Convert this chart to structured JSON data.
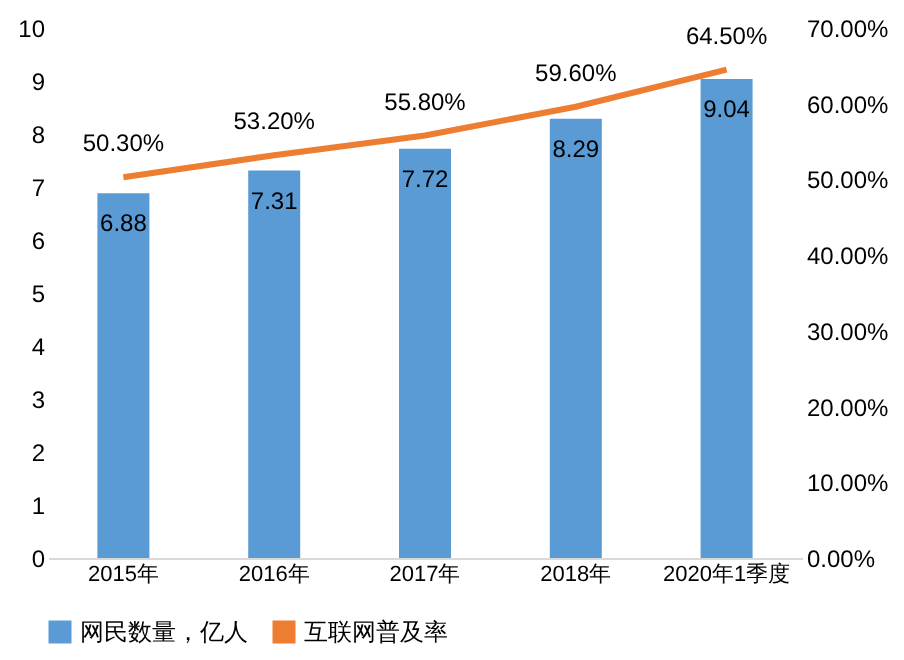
{
  "chart_data": {
    "type": "bar",
    "categories": [
      "2015年",
      "2016年",
      "2017年",
      "2018年",
      "2020年1季度"
    ],
    "series": [
      {
        "name": "网民数量，亿人",
        "type": "bar",
        "color": "#5b9bd5",
        "values": [
          6.88,
          7.31,
          7.72,
          8.29,
          9.04
        ],
        "value_labels": [
          "6.88",
          "7.31",
          "7.72",
          "8.29",
          "9.04"
        ]
      },
      {
        "name": "互联网普及率",
        "type": "line",
        "axis": "y2",
        "color": "#ed7d31",
        "values": [
          50.3,
          53.2,
          55.8,
          59.6,
          64.5
        ],
        "value_labels": [
          "50.30%",
          "53.20%",
          "55.80%",
          "59.60%",
          "64.50%"
        ]
      }
    ],
    "ylim": [
      0,
      10
    ],
    "yticks": [
      0,
      1,
      2,
      3,
      4,
      5,
      6,
      7,
      8,
      9,
      10
    ],
    "y2lim": [
      0,
      70
    ],
    "y2ticks": [
      {
        "value": 0,
        "label": "0.00%"
      },
      {
        "value": 10,
        "label": "10.00%"
      },
      {
        "value": 20,
        "label": "20.00%"
      },
      {
        "value": 30,
        "label": "30.00%"
      },
      {
        "value": 40,
        "label": "40.00%"
      },
      {
        "value": 50,
        "label": "50.00%"
      },
      {
        "value": 60,
        "label": "60.00%"
      },
      {
        "value": 70,
        "label": "70.00%"
      }
    ],
    "legend": "bottom"
  }
}
